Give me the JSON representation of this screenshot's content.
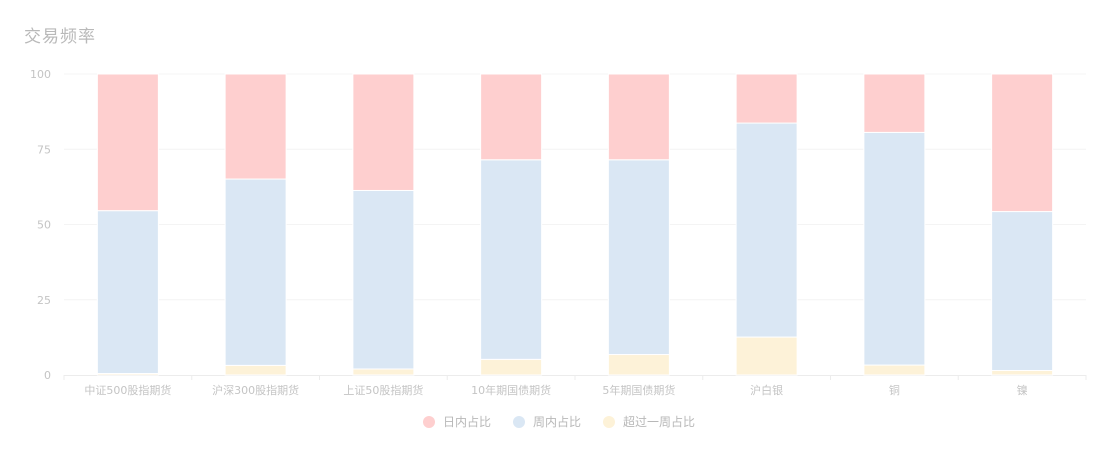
{
  "chart_data": {
    "type": "bar",
    "stacked": true,
    "title": "交易频率",
    "categories": [
      "中证500股指期货",
      "沪深300股指期货",
      "上证50股指期货",
      "10年期国债期货",
      "5年期国债期货",
      "沪白银",
      "铜",
      "镍"
    ],
    "ylim": [
      0,
      100
    ],
    "yticks": [
      0,
      25,
      50,
      75,
      100
    ],
    "grid": true,
    "legend_position": "bottom",
    "series": [
      {
        "name": "超过一周占比",
        "color": "#fdf2d8",
        "values": [
          0.5,
          3.2,
          2.0,
          5.2,
          6.8,
          12.6,
          3.3,
          1.5
        ]
      },
      {
        "name": "周内占比",
        "color": "#dae7f4",
        "values": [
          54.1,
          61.9,
          59.3,
          66.3,
          64.7,
          71.1,
          77.3,
          52.8
        ]
      },
      {
        "name": "日内占比",
        "color": "#fecfcf",
        "values": [
          45.4,
          34.9,
          38.7,
          28.5,
          28.5,
          16.3,
          19.4,
          45.7
        ]
      }
    ]
  },
  "legend": {
    "items": [
      {
        "label": "日内占比",
        "color": "#fecfcf"
      },
      {
        "label": "周内占比",
        "color": "#dae7f4"
      },
      {
        "label": "超过一周占比",
        "color": "#fdf2d8"
      }
    ]
  }
}
